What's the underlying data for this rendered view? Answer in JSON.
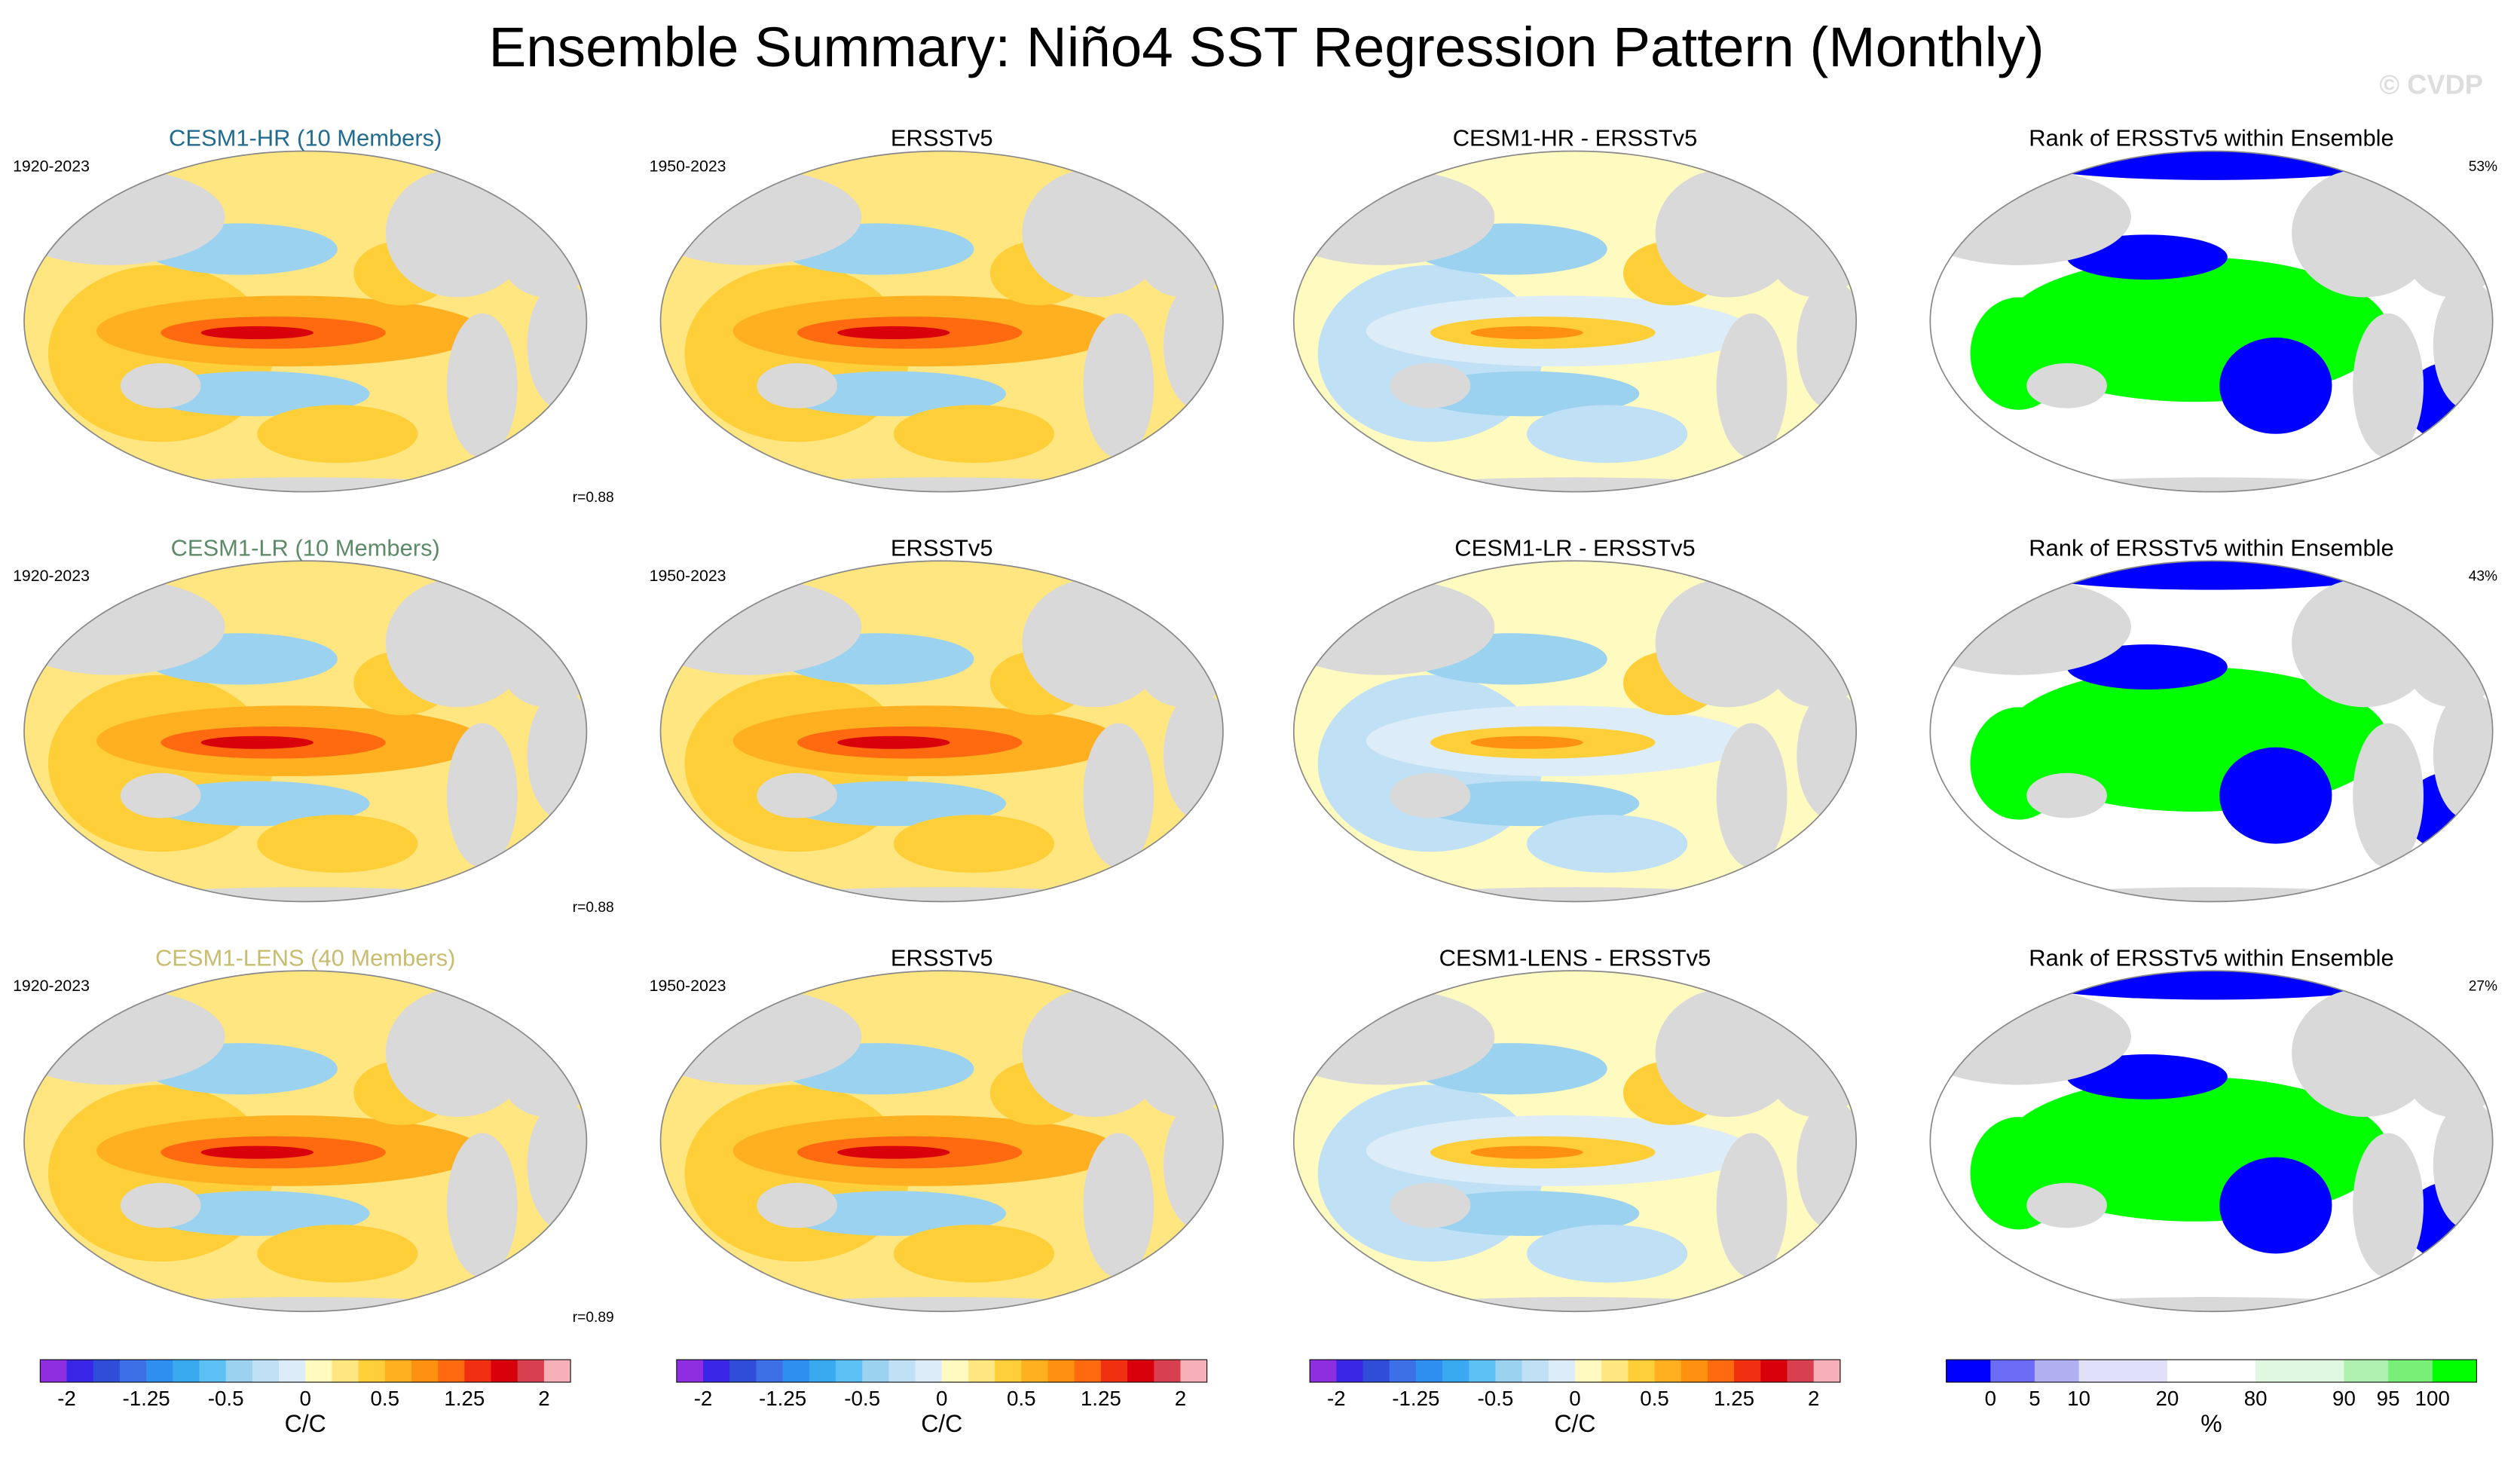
{
  "title": "Ensemble Summary: Niño4 SST Regression Pattern (Monthly)",
  "watermark": "© CVDP",
  "rows": [
    {
      "panels": [
        {
          "title": "CESM1-HR (10 Members)",
          "title_color": "#226b8f",
          "left_label": "1920-2023",
          "right_label": "r=0.88"
        },
        {
          "title": "ERSSTv5",
          "title_color": "#000000",
          "left_label": "1950-2023"
        },
        {
          "title": "CESM1-HR - ERSSTv5",
          "title_color": "#000000"
        },
        {
          "title": "Rank of ERSSTv5 within Ensemble",
          "title_color": "#000000",
          "right_label": "53%"
        }
      ]
    },
    {
      "panels": [
        {
          "title": "CESM1-LR (10 Members)",
          "title_color": "#5d8a68",
          "left_label": "1920-2023",
          "right_label": "r=0.88"
        },
        {
          "title": "ERSSTv5",
          "title_color": "#000000",
          "left_label": "1950-2023"
        },
        {
          "title": "CESM1-LR - ERSSTv5",
          "title_color": "#000000"
        },
        {
          "title": "Rank of ERSSTv5 within Ensemble",
          "title_color": "#000000",
          "right_label": "43%"
        }
      ]
    },
    {
      "panels": [
        {
          "title": "CESM1-LENS (40 Members)",
          "title_color": "#c8bd6e",
          "left_label": "1920-2023",
          "right_label": "r=0.89"
        },
        {
          "title": "ERSSTv5",
          "title_color": "#000000",
          "left_label": "1950-2023"
        },
        {
          "title": "CESM1-LENS - ERSSTv5",
          "title_color": "#000000"
        },
        {
          "title": "Rank of ERSSTv5 within Ensemble",
          "title_color": "#000000",
          "right_label": "27%"
        }
      ]
    }
  ],
  "colorbars": [
    {
      "colors": [
        "#8e2ee0",
        "#3a26e6",
        "#2f4dd9",
        "#3d6fe6",
        "#2f8ff0",
        "#3aaaf0",
        "#5dc0f5",
        "#9bd2f0",
        "#bfe0f5",
        "#dcecf8",
        "#fffac0",
        "#ffe680",
        "#ffcf3a",
        "#ffb020",
        "#ff9010",
        "#ff6a10",
        "#f03010",
        "#d8000a",
        "#d84050",
        "#f8b0b8"
      ],
      "labels": [
        "-2",
        "-1.25",
        "-0.5",
        "0",
        "0.5",
        "1.25",
        "2"
      ],
      "unit": "C/C"
    },
    {
      "colors": [
        "#8e2ee0",
        "#3a26e6",
        "#2f4dd9",
        "#3d6fe6",
        "#2f8ff0",
        "#3aaaf0",
        "#5dc0f5",
        "#9bd2f0",
        "#bfe0f5",
        "#dcecf8",
        "#fffac0",
        "#ffe680",
        "#ffcf3a",
        "#ffb020",
        "#ff9010",
        "#ff6a10",
        "#f03010",
        "#d8000a",
        "#d84050",
        "#f8b0b8"
      ],
      "labels": [
        "-2",
        "-1.25",
        "-0.5",
        "0",
        "0.5",
        "1.25",
        "2"
      ],
      "unit": "C/C"
    },
    {
      "colors": [
        "#8e2ee0",
        "#3a26e6",
        "#2f4dd9",
        "#3d6fe6",
        "#2f8ff0",
        "#3aaaf0",
        "#5dc0f5",
        "#9bd2f0",
        "#bfe0f5",
        "#dcecf8",
        "#fffac0",
        "#ffe680",
        "#ffcf3a",
        "#ffb020",
        "#ff9010",
        "#ff6a10",
        "#f03010",
        "#d8000a",
        "#d84050",
        "#f8b0b8"
      ],
      "labels": [
        "-2",
        "-1.25",
        "-0.5",
        "0",
        "0.5",
        "1.25",
        "2"
      ],
      "unit": "C/C"
    },
    {
      "colors": [
        "#0000ff",
        "#6b6bf5",
        "#b0b0f0",
        "#e0e0f8",
        "#e0e0f8",
        "#ffffff",
        "#ffffff",
        "#e0f8e0",
        "#e0f8e0",
        "#b0f0b0",
        "#78f078",
        "#00ff00"
      ],
      "labels": [
        "0",
        "5",
        "10",
        "20",
        "80",
        "90",
        "95",
        "100"
      ],
      "unit": "%"
    }
  ]
}
